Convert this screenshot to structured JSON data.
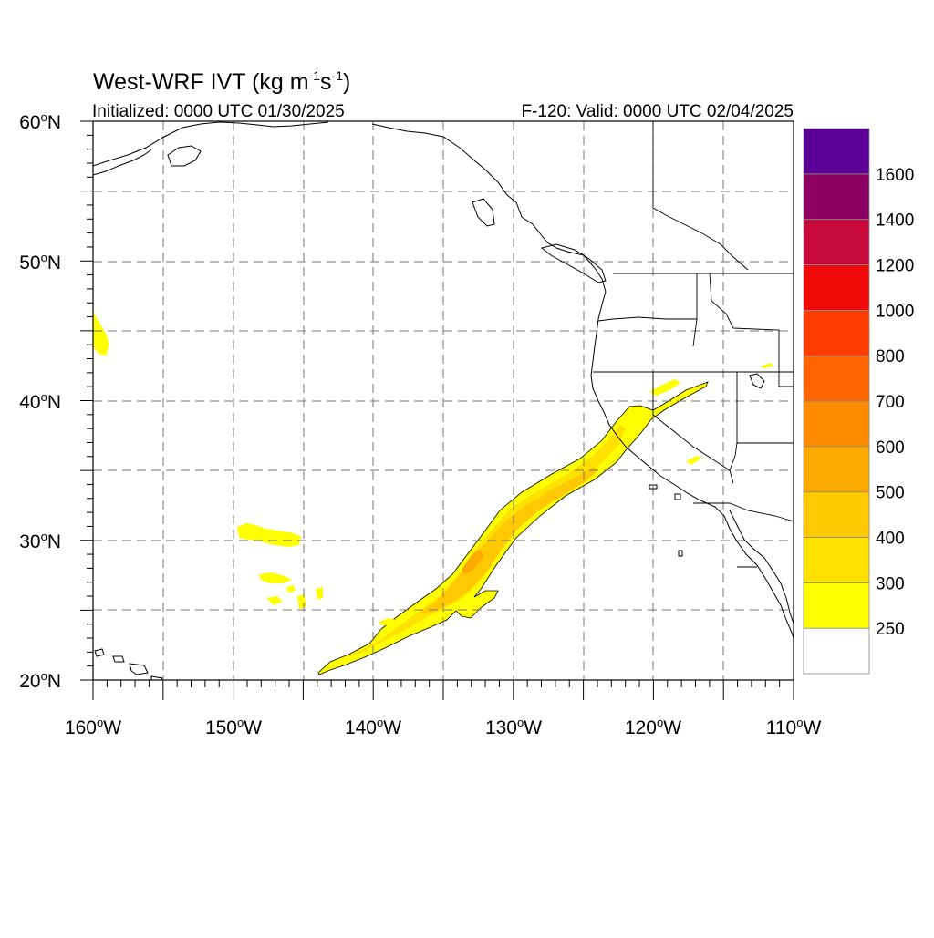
{
  "map": {
    "title_main": "West-WRF IVT (kg m",
    "title_sup1": "-1",
    "title_mid": "s",
    "title_sup2": "-1",
    "title_end": ")",
    "init_label": "Initialized: 0000 UTC 01/30/2025",
    "valid_label": "F-120: Valid: 0000 UTC 02/04/2025",
    "lat_labels": [
      {
        "deg": "60",
        "hem": "N",
        "value": 60
      },
      {
        "deg": "50",
        "hem": "N",
        "value": 50
      },
      {
        "deg": "40",
        "hem": "N",
        "value": 40
      },
      {
        "deg": "30",
        "hem": "N",
        "value": 30
      },
      {
        "deg": "20",
        "hem": "N",
        "value": 20
      }
    ],
    "lon_labels": [
      {
        "deg": "160",
        "hem": "W",
        "value": -160
      },
      {
        "deg": "150",
        "hem": "W",
        "value": -150
      },
      {
        "deg": "140",
        "hem": "W",
        "value": -140
      },
      {
        "deg": "130",
        "hem": "W",
        "value": -130
      },
      {
        "deg": "120",
        "hem": "W",
        "value": -120
      },
      {
        "deg": "110",
        "hem": "W",
        "value": -110
      }
    ],
    "extent": {
      "lon_min": -160,
      "lon_max": -110,
      "lat_min": 20,
      "lat_max": 60
    },
    "grid": "dashed, every 5 degrees",
    "colorbar": {
      "labels": [
        "250",
        "300",
        "400",
        "500",
        "600",
        "700",
        "800",
        "1000",
        "1200",
        "1400",
        "1600"
      ],
      "bins": [
        {
          "range": "below 250",
          "color": "#ffffff"
        },
        {
          "range": "250-300",
          "color": "#ffff00"
        },
        {
          "range": "300-400",
          "color": "#ffe100"
        },
        {
          "range": "400-500",
          "color": "#ffc800"
        },
        {
          "range": "500-600",
          "color": "#ffaa00"
        },
        {
          "range": "600-700",
          "color": "#ff8c00"
        },
        {
          "range": "700-800",
          "color": "#ff6400"
        },
        {
          "range": "800-1000",
          "color": "#ff3c00"
        },
        {
          "range": "1000-1200",
          "color": "#f00a0a"
        },
        {
          "range": "1200-1400",
          "color": "#c80a3c"
        },
        {
          "range": "1400-1600",
          "color": "#8c0064"
        },
        {
          "range": "above 1600",
          "color": "#5a0096"
        }
      ]
    },
    "features": {
      "atmospheric_river": "IVT 250-500 kg/m/s plume from near 21N 144W to 41N 116W",
      "max_color": "#ffaa00"
    }
  }
}
